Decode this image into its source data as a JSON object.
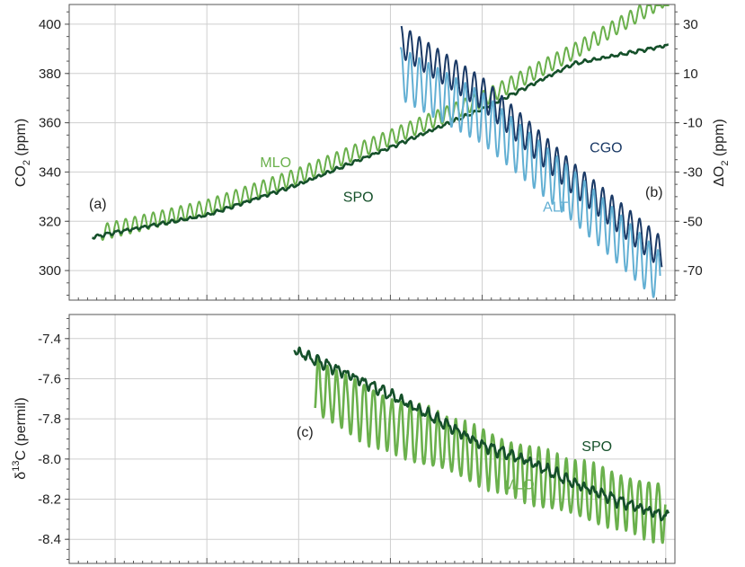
{
  "chart_data": [
    {
      "type": "line",
      "panel": "top",
      "panel_labels": [
        "(a)",
        "(b)"
      ],
      "y_left": {
        "label_main": "CO",
        "label_sub": "2",
        "label_unit": " (ppm)",
        "ticks": [
          300,
          320,
          340,
          360,
          380,
          400
        ],
        "tick_labels": [
          "300",
          "320",
          "340",
          "360",
          "380",
          "400"
        ],
        "ylim": [
          288,
          408
        ]
      },
      "y_right": {
        "label_main": "ΔO",
        "label_sub": "2",
        "label_unit": " (ppm)",
        "ticks": [
          -70,
          -50,
          -30,
          -10,
          10,
          30
        ],
        "tick_labels": [
          "-70",
          "-50",
          "-30",
          "-10",
          "10",
          "30"
        ],
        "ylim": [
          -82,
          38
        ]
      },
      "x": {
        "range": [
          1955,
          2021
        ],
        "gridlines": [
          1960,
          1970,
          1980,
          1990,
          2000,
          2010,
          2020
        ]
      },
      "series": [
        {
          "name": "MLO",
          "axis": "left",
          "color": "#6ab04c",
          "label_color": "#6ab04c",
          "label_pos": [
            1977.5,
            342
          ],
          "x_start": 1958.5,
          "x_end": 2020.4,
          "baseline": [
            [
              1958.5,
              315.5
            ],
            [
              1970,
              325.5
            ],
            [
              1980,
              338.5
            ],
            [
              1990,
              354
            ],
            [
              2000,
              369.5
            ],
            [
              2010,
              389
            ],
            [
              2020.4,
              411.5
            ]
          ],
          "seasonal_amplitude": 3.2
        },
        {
          "name": "SPO",
          "axis": "left",
          "color": "#15502a",
          "label_color": "#15502a",
          "label_pos": [
            1986.5,
            328
          ],
          "x_start": 1957.5,
          "x_end": 2020.3,
          "baseline": [
            [
              1957.5,
              313.5
            ],
            [
              1960,
              315.5
            ],
            [
              1970,
              322.5
            ],
            [
              1980,
              335
            ],
            [
              1990,
              350
            ],
            [
              2000,
              365.5
            ],
            [
              2010,
              384
            ],
            [
              2020.3,
              391.5
            ]
          ],
          "seasonal_amplitude": 0.5
        },
        {
          "name": "CGO",
          "axis": "right",
          "color": "#1b3a66",
          "label_color": "#1b3a66",
          "label_pos": [
            2013.5,
            -22
          ],
          "x_start": 1991.2,
          "x_end": 2019.6,
          "baseline": [
            [
              1991.2,
              23
            ],
            [
              2000,
              2
            ],
            [
              2010,
              -33
            ],
            [
              2019.6,
              -63
            ]
          ],
          "seasonal_amplitude": 6.5
        },
        {
          "name": "ALT",
          "axis": "right",
          "color": "#62afd3",
          "label_color": "#62afd3",
          "label_pos": [
            2008,
            -46
          ],
          "x_start": 1991.1,
          "x_end": 2019.4,
          "baseline": [
            [
              1991.1,
              10
            ],
            [
              2000,
              -8
            ],
            [
              2010,
              -40
            ],
            [
              2019.4,
              -73
            ]
          ],
          "seasonal_amplitude": 10.5
        }
      ]
    },
    {
      "type": "line",
      "panel": "bottom",
      "panel_labels": [
        "(c)"
      ],
      "y_left": {
        "label_main": "δ",
        "label_sup": "13",
        "label_unit": "C  (permil)",
        "ticks": [
          -8.4,
          -8.2,
          -8.0,
          -7.8,
          -7.6,
          -7.4
        ],
        "tick_labels": [
          "-8.4",
          "-8.2",
          "-8.0",
          "-7.8",
          "-7.6",
          "-7.4"
        ],
        "ylim": [
          -8.52,
          -7.28
        ]
      },
      "x": {
        "range": [
          1955,
          2021
        ],
        "gridlines": [
          1960,
          1970,
          1980,
          1990,
          2000,
          2010,
          2020
        ]
      },
      "series": [
        {
          "name": "MLO",
          "axis": "left",
          "color": "#6ab04c",
          "label_color": "#6ab04c",
          "label_pos": [
            2004,
            -8.15
          ],
          "x_start": 1981.8,
          "x_end": 2020.0,
          "baseline": [
            [
              1981.8,
              -7.64
            ],
            [
              1990,
              -7.83
            ],
            [
              2000,
              -7.99
            ],
            [
              2010,
              -8.15
            ],
            [
              2020,
              -8.27
            ]
          ],
          "seasonal_amplitude": 0.14
        },
        {
          "name": "SPO",
          "axis": "left",
          "color": "#15502a",
          "label_color": "#15502a",
          "label_pos": [
            2012.5,
            -7.96
          ],
          "x_start": 1979.5,
          "x_end": 2020.3,
          "baseline": [
            [
              1979.5,
              -7.46
            ],
            [
              1985,
              -7.57
            ],
            [
              1990,
              -7.68
            ],
            [
              1995,
              -7.8
            ],
            [
              2000,
              -7.93
            ],
            [
              2005,
              -8.01
            ],
            [
              2010,
              -8.12
            ],
            [
              2015,
              -8.21
            ],
            [
              2020.3,
              -8.29
            ]
          ],
          "seasonal_amplitude": 0.02
        }
      ]
    }
  ]
}
